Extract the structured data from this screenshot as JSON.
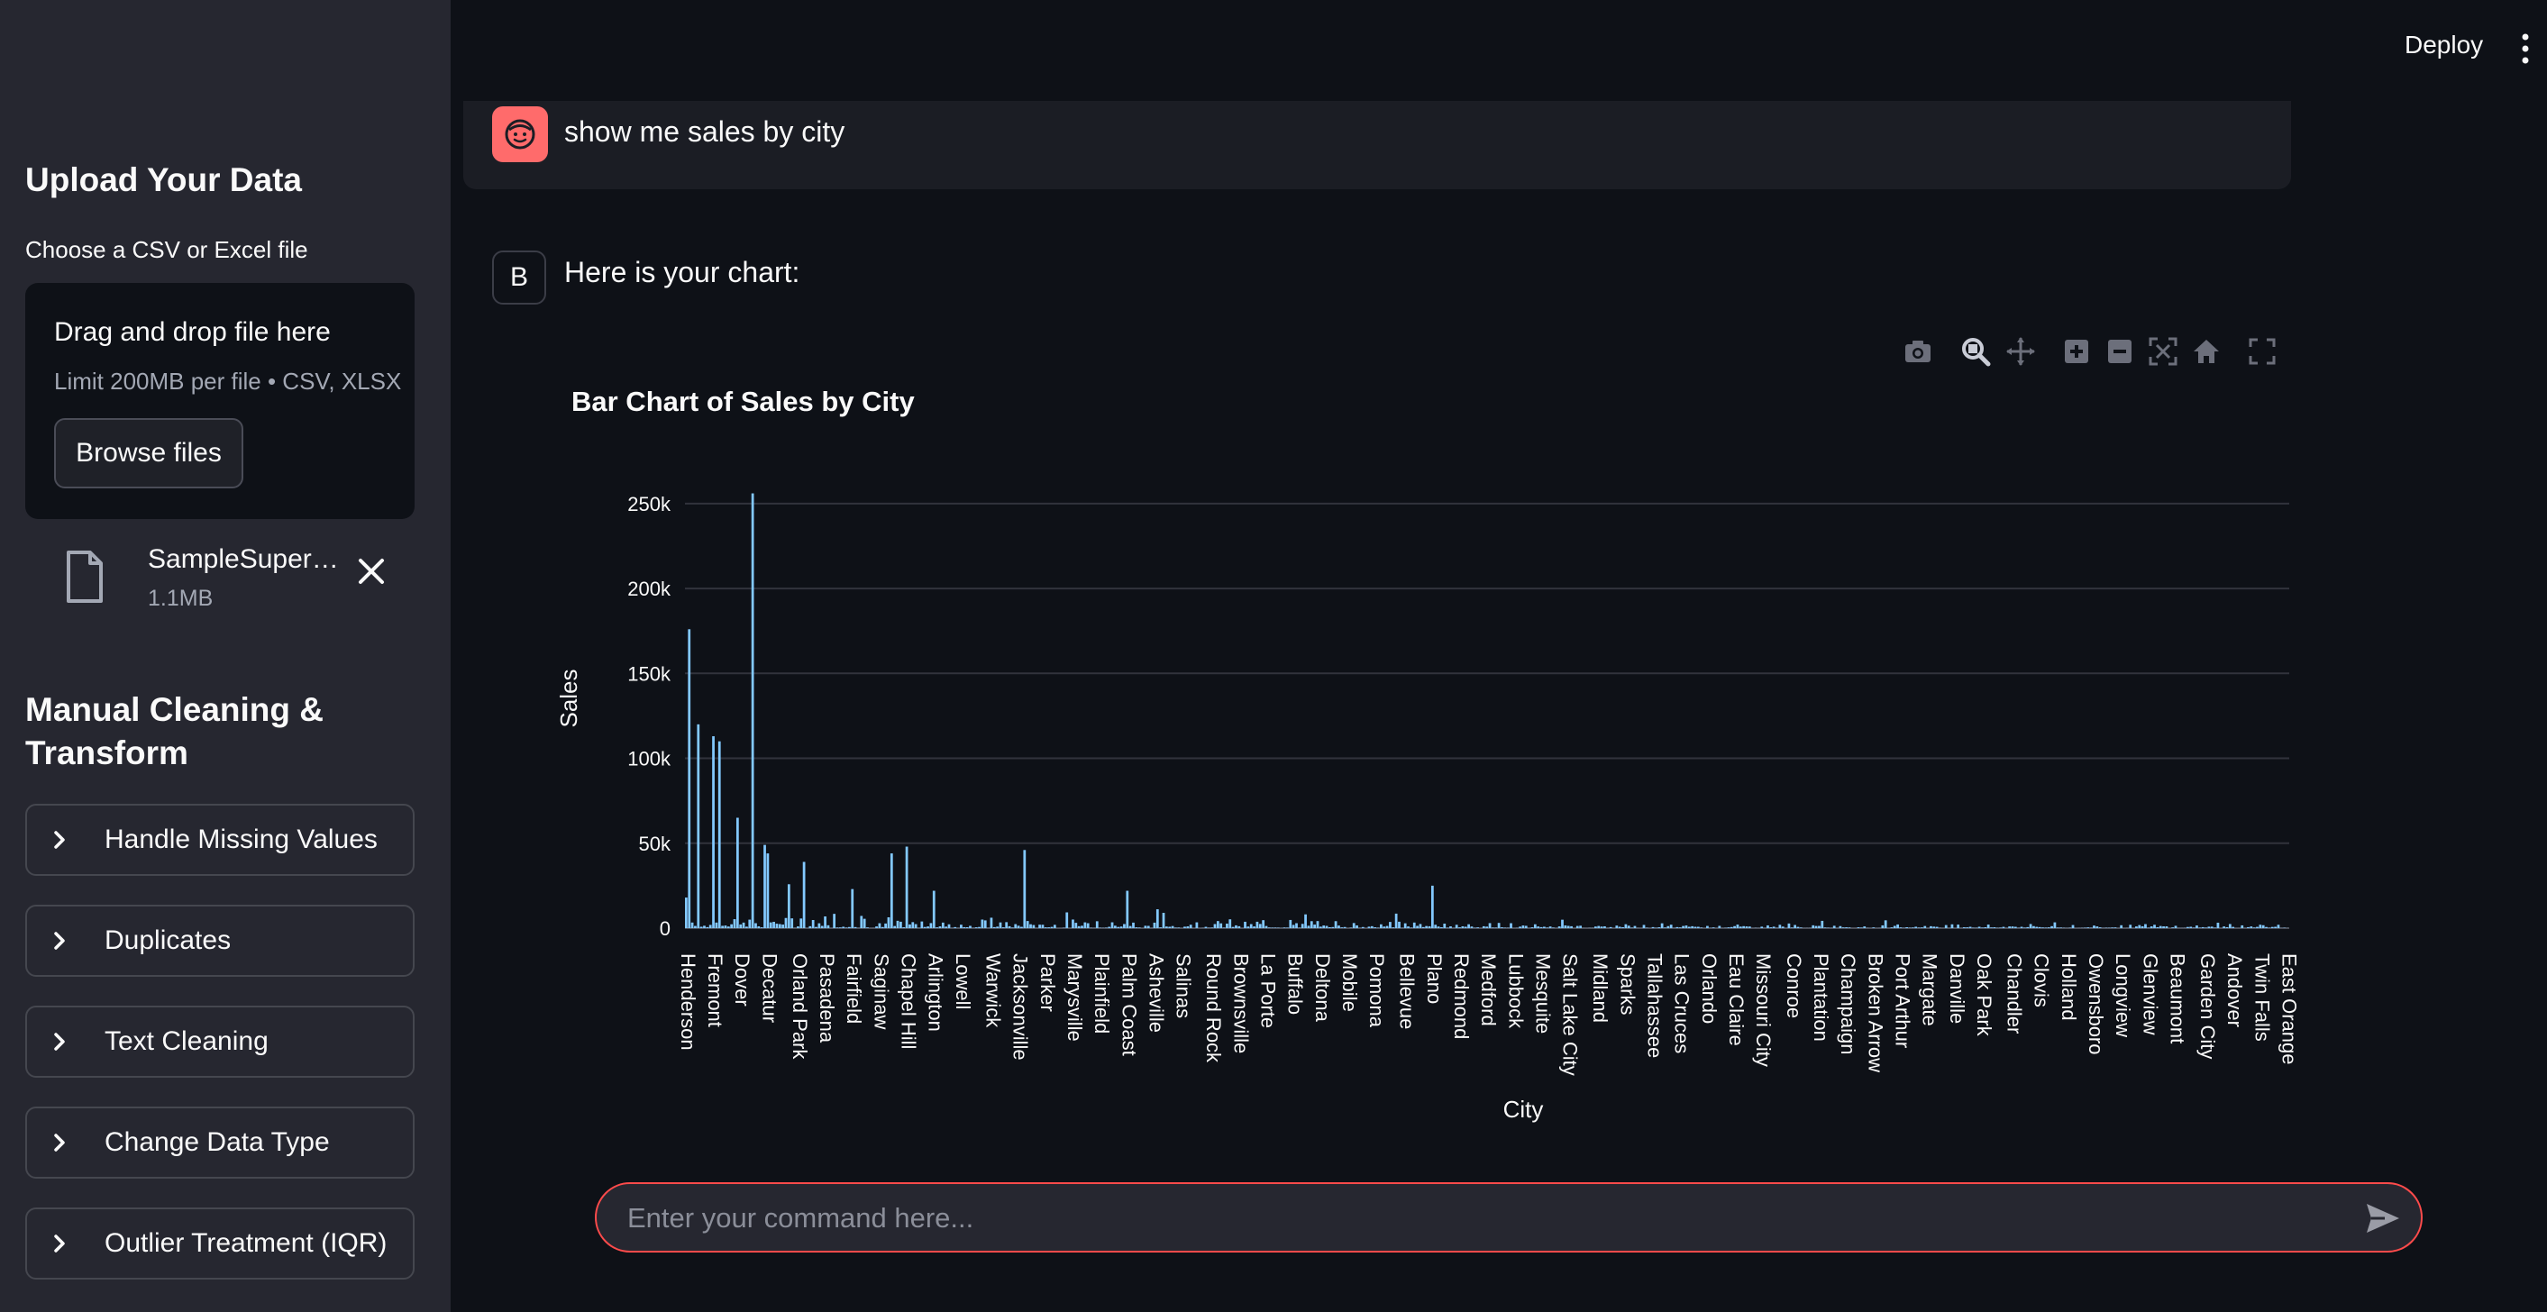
{
  "header": {
    "deploy_label": "Deploy",
    "menu_icon": "more-vertical-icon"
  },
  "sidebar": {
    "upload_title": "Upload Your Data",
    "choose_label": "Choose a CSV or Excel file",
    "dropzone": {
      "title": "Drag and drop file here",
      "limit": "Limit 200MB per file • CSV, XLSX",
      "browse_label": "Browse files"
    },
    "file": {
      "name": "SampleSuper…",
      "size": "1.1MB",
      "icon": "file-icon"
    },
    "cleaning_title": "Manual Cleaning & Transform",
    "expanders": [
      {
        "label": "Handle Missing Values"
      },
      {
        "label": "Duplicates"
      },
      {
        "label": "Text Cleaning"
      },
      {
        "label": "Change Data Type"
      },
      {
        "label": "Outlier Treatment (IQR)"
      }
    ]
  },
  "chat": {
    "user_message": "show me sales by city",
    "bot_avatar_letter": "B",
    "bot_message": "Here is your chart:"
  },
  "input": {
    "placeholder": "Enter your command here..."
  },
  "colors": {
    "accent": "#ff4b4b",
    "bar": "#83c9ff",
    "avatar": "#ff6b6b"
  },
  "chart_data": {
    "type": "bar",
    "title": "Bar Chart of Sales by City",
    "xlabel": "City",
    "ylabel": "Sales",
    "ylim": [
      0,
      260000
    ],
    "yticks": [
      {
        "value": 0,
        "label": "0"
      },
      {
        "value": 50000,
        "label": "50k"
      },
      {
        "value": 100000,
        "label": "100k"
      },
      {
        "value": 150000,
        "label": "150k"
      },
      {
        "value": 200000,
        "label": "200k"
      },
      {
        "value": 250000,
        "label": "250k"
      }
    ],
    "bar_count": 531,
    "tick_labels": [
      "Henderson",
      "Fremont",
      "Dover",
      "Decatur",
      "Orland Park",
      "Pasadena",
      "Fairfield",
      "Saginaw",
      "Chapel Hill",
      "Arlington",
      "Lowell",
      "Warwick",
      "Jacksonville",
      "Parker",
      "Marysville",
      "Plainfield",
      "Palm Coast",
      "Asheville",
      "Salinas",
      "Round Rock",
      "Brownsville",
      "La Porte",
      "Buffalo",
      "Deltona",
      "Mobile",
      "Pomona",
      "Bellevue",
      "Plano",
      "Redmond",
      "Medford",
      "Lubbock",
      "Mesquite",
      "Salt Lake City",
      "Midland",
      "Sparks",
      "Tallahassee",
      "Las Cruces",
      "Orlando",
      "Eau Claire",
      "Missouri City",
      "Conroe",
      "Plantation",
      "Champaign",
      "Broken Arrow",
      "Port Arthur",
      "Margate",
      "Danville",
      "Oak Park",
      "Chandler",
      "Clovis",
      "Holland",
      "Owensboro",
      "Longview",
      "Glenview",
      "Beaumont",
      "Garden City",
      "Andover",
      "Twin Falls",
      "East Orange"
    ],
    "highlighted_values": [
      {
        "city": "Henderson",
        "value": 18000
      },
      {
        "city": "Henderson+1",
        "value": 176000
      },
      {
        "city": "Henderson+4",
        "value": 120000
      },
      {
        "city": "Fremont",
        "value": 113000
      },
      {
        "city": "Fremont+2",
        "value": 110000
      },
      {
        "city": "Dover-1",
        "value": 65000
      },
      {
        "city": "Dover+4",
        "value": 256000
      },
      {
        "city": "Decatur-1",
        "value": 49000
      },
      {
        "city": "Decatur",
        "value": 44000
      },
      {
        "city": "Orland Park+2",
        "value": 39000
      },
      {
        "city": "Fairfield",
        "value": 23000
      },
      {
        "city": "Saginaw+4",
        "value": 44000
      },
      {
        "city": "Chapel Hill",
        "value": 48000
      },
      {
        "city": "Arlington",
        "value": 22000
      },
      {
        "city": "Jacksonville+2",
        "value": 46000
      },
      {
        "city": "Palm Coast",
        "value": 22000
      },
      {
        "city": "Plano",
        "value": 25000
      }
    ]
  }
}
